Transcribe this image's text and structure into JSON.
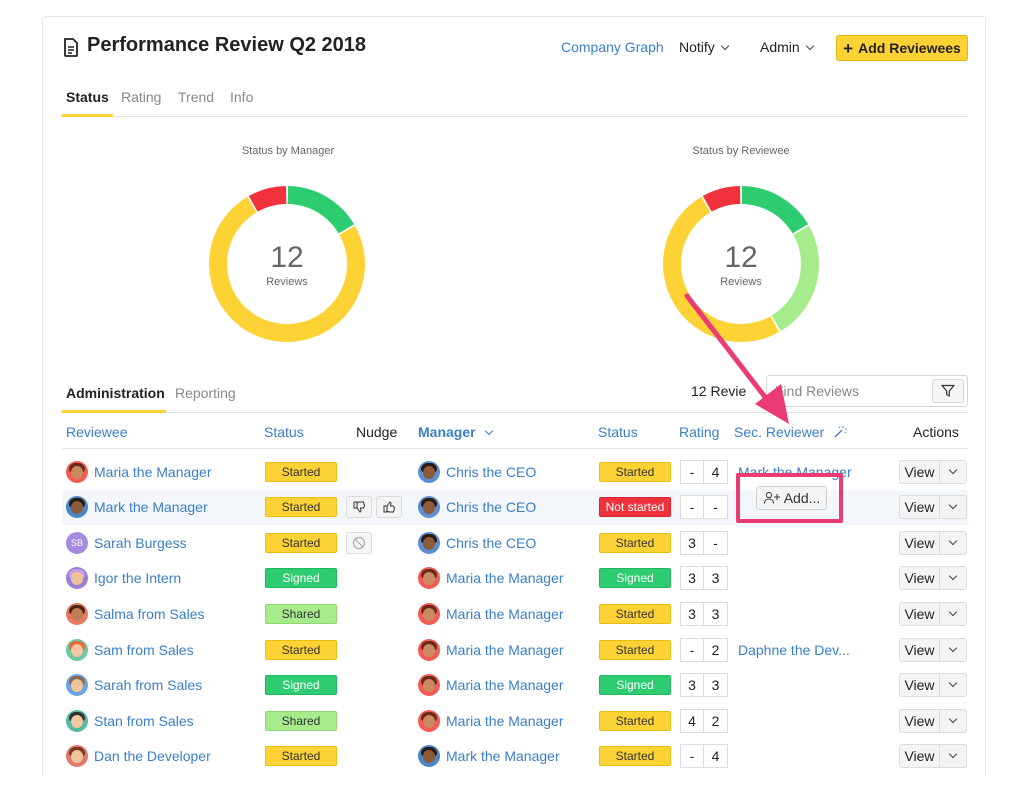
{
  "header": {
    "title": "Performance Review Q2 2018",
    "company_graph": "Company Graph",
    "notify": "Notify",
    "admin": "Admin",
    "add_reviewees": "Add Reviewees"
  },
  "tabs": [
    "Status",
    "Rating",
    "Trend",
    "Info"
  ],
  "charts": [
    {
      "label": "Status by Manager",
      "count": "12",
      "sub": "Reviews"
    },
    {
      "label": "Status by Reviewee",
      "count": "12",
      "sub": "Reviews"
    }
  ],
  "chart_data": [
    {
      "type": "pie",
      "title": "Status by Manager",
      "center_value": 12,
      "categories": [
        "Not started",
        "Signed",
        "Started"
      ],
      "values": [
        1,
        2,
        9
      ],
      "colors": [
        "#f0323c",
        "#2ecc71",
        "#fdd234"
      ]
    },
    {
      "type": "pie",
      "title": "Status by Reviewee",
      "center_value": 12,
      "categories": [
        "Not started",
        "Signed",
        "Shared",
        "Started"
      ],
      "values": [
        1,
        2,
        3,
        6
      ],
      "colors": [
        "#f0323c",
        "#2ecc71",
        "#a6ec8c",
        "#fdd234"
      ]
    }
  ],
  "subtabs": [
    "Administration",
    "Reporting"
  ],
  "search": {
    "count_label": "12 Revie",
    "placeholder": "Find Reviews"
  },
  "table": {
    "headers": {
      "reviewee": "Reviewee",
      "status": "Status",
      "nudge": "Nudge",
      "manager": "Manager",
      "manager_status": "Status",
      "rating": "Rating",
      "sec_reviewer": "Sec. Reviewer",
      "actions": "Actions"
    },
    "view_label": "View",
    "add_label": "Add...",
    "rows": [
      {
        "reviewee": "Maria the Manager",
        "status": "Started",
        "manager": "Chris the CEO",
        "manager_status": "Started",
        "r1": "-",
        "r2": "4",
        "sec": "Mark the Manager"
      },
      {
        "reviewee": "Mark the Manager",
        "status": "Started",
        "manager": "Chris the CEO",
        "manager_status": "Not started",
        "r1": "-",
        "r2": "-",
        "sec": ""
      },
      {
        "reviewee": "Sarah Burgess",
        "status": "Started",
        "manager": "Chris the CEO",
        "manager_status": "Started",
        "r1": "3",
        "r2": "-",
        "sec": "",
        "initials": "SB"
      },
      {
        "reviewee": "Igor the Intern",
        "status": "Signed",
        "manager": "Maria the Manager",
        "manager_status": "Signed",
        "r1": "3",
        "r2": "3",
        "sec": ""
      },
      {
        "reviewee": "Salma from Sales",
        "status": "Shared",
        "manager": "Maria the Manager",
        "manager_status": "Started",
        "r1": "3",
        "r2": "3",
        "sec": ""
      },
      {
        "reviewee": "Sam from Sales",
        "status": "Started",
        "manager": "Maria the Manager",
        "manager_status": "Started",
        "r1": "-",
        "r2": "2",
        "sec": "Daphne the Dev..."
      },
      {
        "reviewee": "Sarah from Sales",
        "status": "Signed",
        "manager": "Maria the Manager",
        "manager_status": "Signed",
        "r1": "3",
        "r2": "3",
        "sec": ""
      },
      {
        "reviewee": "Stan from Sales",
        "status": "Shared",
        "manager": "Maria the Manager",
        "manager_status": "Started",
        "r1": "4",
        "r2": "2",
        "sec": ""
      },
      {
        "reviewee": "Dan the Developer",
        "status": "Started",
        "manager": "Mark the Manager",
        "manager_status": "Started",
        "r1": "-",
        "r2": "4",
        "sec": ""
      }
    ]
  },
  "colors": {
    "accent_blue": "#3a7fc8",
    "brand_yellow": "#fdd234",
    "annotation_pink": "#ea3b74"
  }
}
